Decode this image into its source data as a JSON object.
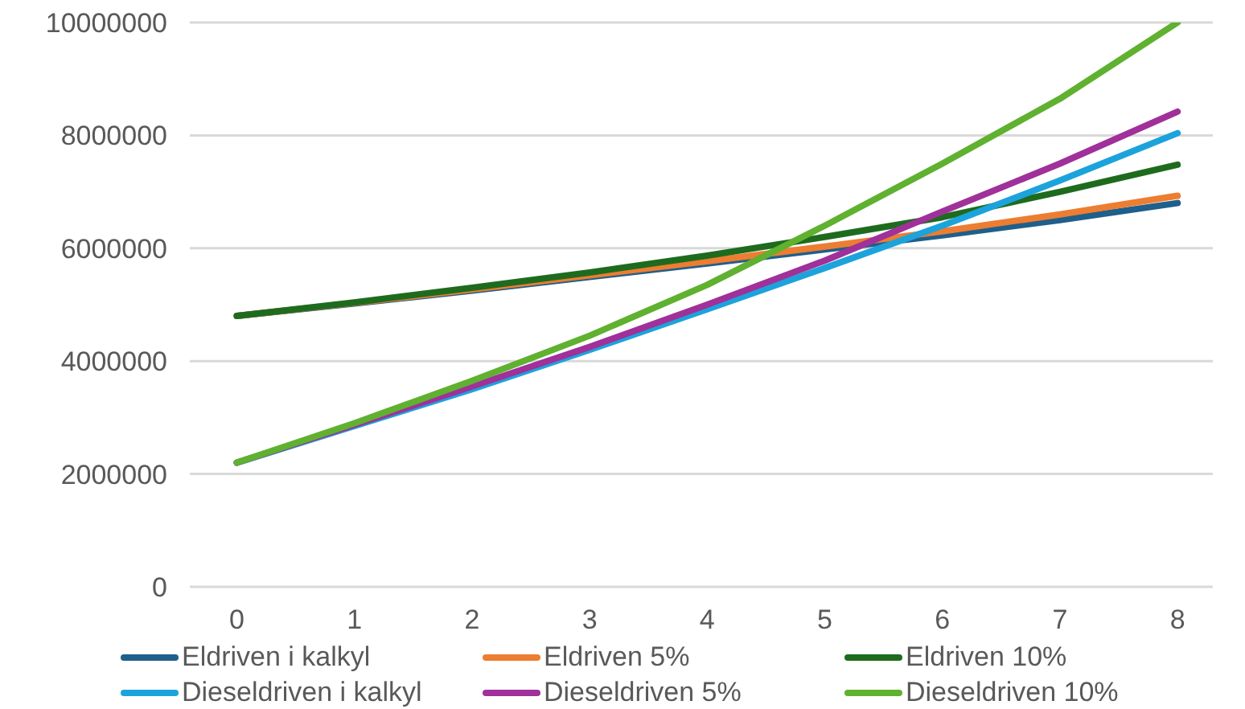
{
  "chart_data": {
    "type": "line",
    "x": [
      0,
      1,
      2,
      3,
      4,
      5,
      6,
      7,
      8
    ],
    "xlim": [
      -0.4,
      8.3
    ],
    "xticks": [
      0,
      1,
      2,
      3,
      4,
      5,
      6,
      7,
      8
    ],
    "ylim": [
      0,
      10000000
    ],
    "yticks": [
      0,
      2000000,
      4000000,
      6000000,
      8000000,
      10000000
    ],
    "grid": "y",
    "legend": "bottom",
    "marker": "none",
    "line_style": "solid",
    "series": [
      {
        "name": "Eldriven i kalkyl",
        "color": "#1f5f8b",
        "values": [
          4800000,
          5020000,
          5250000,
          5490000,
          5730000,
          5980000,
          6230000,
          6500000,
          6800000
        ]
      },
      {
        "name": "Eldriven 5%",
        "color": "#ed7d31",
        "values": [
          4800000,
          5030000,
          5270000,
          5520000,
          5770000,
          6030000,
          6300000,
          6600000,
          6930000
        ]
      },
      {
        "name": "Eldriven 10%",
        "color": "#1e6b1e",
        "values": [
          4800000,
          5040000,
          5300000,
          5570000,
          5870000,
          6200000,
          6550000,
          7000000,
          7480000
        ]
      },
      {
        "name": "Dieseldriven i kalkyl",
        "color": "#1ca3dc",
        "values": [
          2200000,
          2850000,
          3500000,
          4200000,
          4920000,
          5650000,
          6400000,
          7200000,
          8040000
        ]
      },
      {
        "name": "Dieseldriven 5%",
        "color": "#a0309a",
        "values": [
          2200000,
          2870000,
          3550000,
          4250000,
          5000000,
          5780000,
          6650000,
          7500000,
          8420000
        ]
      },
      {
        "name": "Dieseldriven 10%",
        "color": "#5fb12f",
        "values": [
          2200000,
          2900000,
          3650000,
          4450000,
          5350000,
          6400000,
          7500000,
          8650000,
          10000000
        ]
      }
    ]
  }
}
